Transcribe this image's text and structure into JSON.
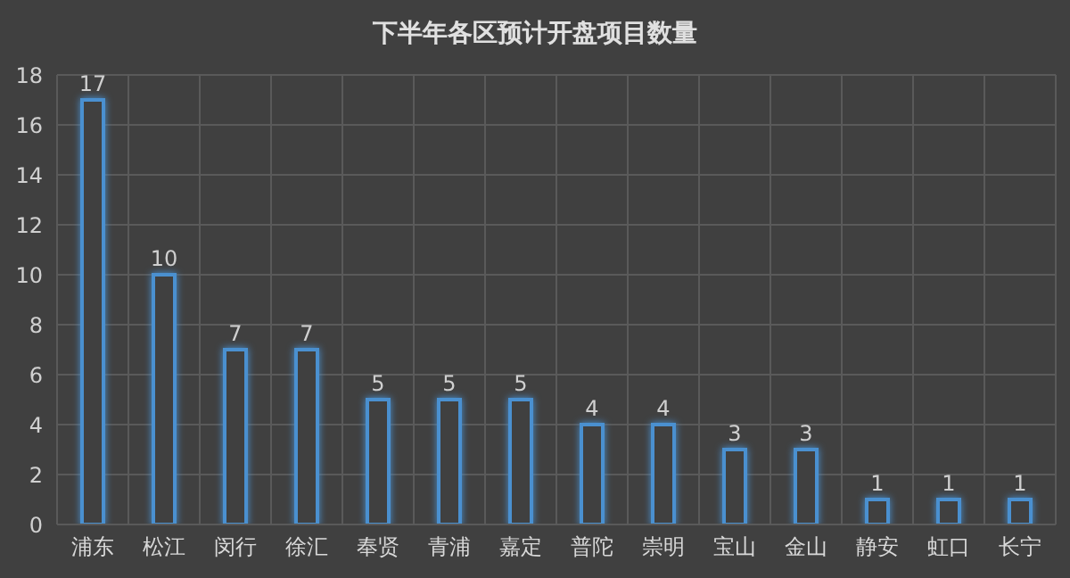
{
  "chart_data": {
    "type": "bar",
    "title": "下半年各区预计开盘项目数量",
    "categories": [
      "浦东",
      "松江",
      "闵行",
      "徐汇",
      "奉贤",
      "青浦",
      "嘉定",
      "普陀",
      "崇明",
      "宝山",
      "金山",
      "静安",
      "虹口",
      "长宁"
    ],
    "values": [
      17,
      10,
      7,
      7,
      5,
      5,
      5,
      4,
      4,
      3,
      3,
      1,
      1,
      1
    ],
    "color": "#4a90d0",
    "ylim": [
      0,
      18
    ],
    "yticks": [
      0,
      2,
      4,
      6,
      8,
      10,
      12,
      14,
      16,
      18
    ],
    "grid": true,
    "data_labels": true
  }
}
